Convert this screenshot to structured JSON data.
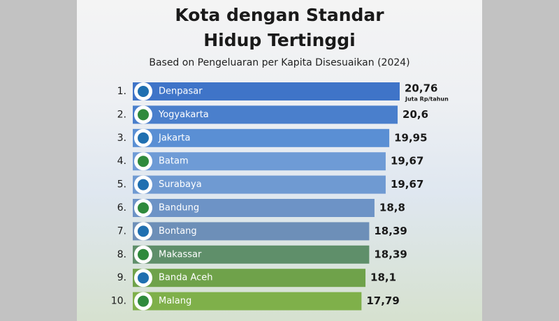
{
  "chart_data": {
    "type": "hbar",
    "title": "Kota dengan Standar Hidup Tertinggi",
    "subtitle": "Based on Pengeluaran per Kapita Disesuaikan (2024)",
    "unit_note": "Juta Rp/tahun",
    "ranks": [
      "1.",
      "2.",
      "3.",
      "4.",
      "5.",
      "6.",
      "7.",
      "8.",
      "9.",
      "10."
    ],
    "categories": [
      "Denpasar",
      "Yogyakarta",
      "Jakarta",
      "Batam",
      "Surabaya",
      "Bandung",
      "Bontang",
      "Makassar",
      "Banda Aceh",
      "Malang"
    ],
    "values": [
      20.76,
      20.6,
      19.95,
      19.67,
      19.67,
      18.8,
      18.39,
      18.39,
      18.1,
      17.79
    ],
    "value_labels": [
      "20,76",
      "20,6",
      "19,95",
      "19,67",
      "19,67",
      "18,8",
      "18,39",
      "18,39",
      "18,1",
      "17,79"
    ],
    "colors": [
      "#3f74c8",
      "#4a7fcc",
      "#5a8fd4",
      "#6e9bd6",
      "#6f9ad2",
      "#6d93c6",
      "#6d8fb8",
      "#5f8f6a",
      "#6fa24a",
      "#7fb04a"
    ]
  }
}
